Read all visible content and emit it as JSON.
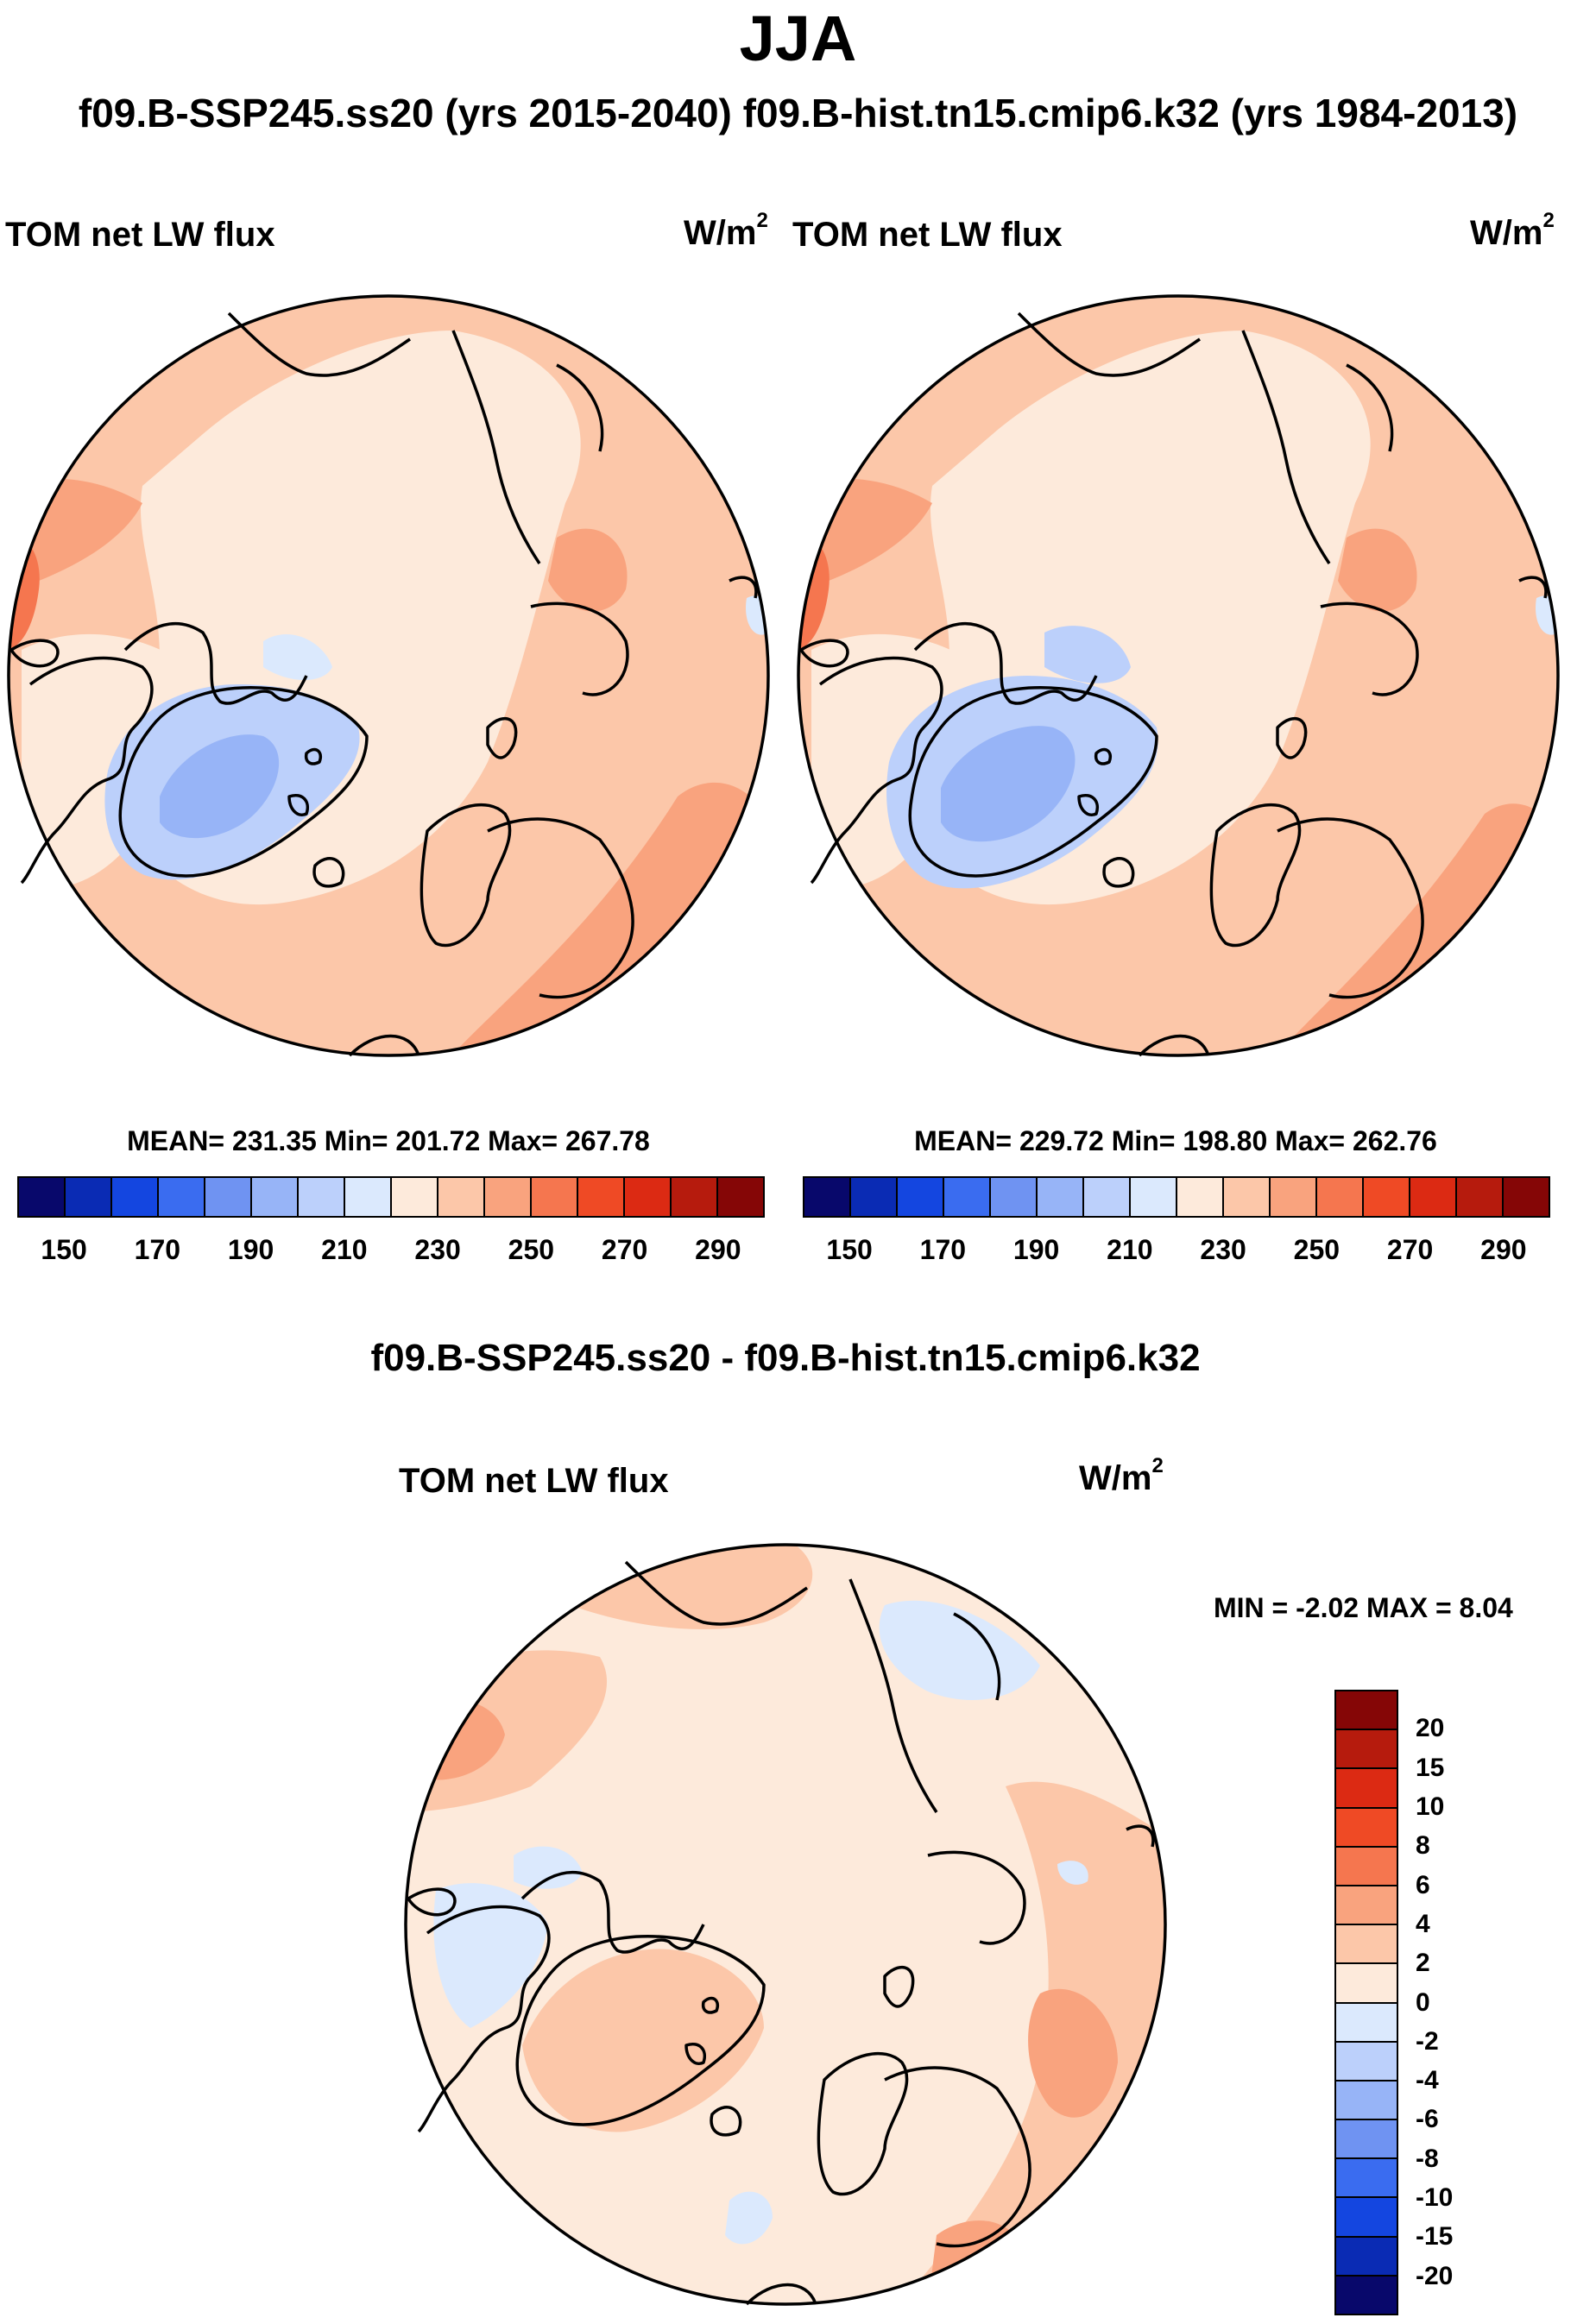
{
  "title": "JJA",
  "subtitle": "f09.B-SSP245.ss20 (yrs 2015-2040)  f09.B-hist.tn15.cmip6.k32 (yrs 1984-2013)",
  "units_base": "W/m",
  "units_exp": "2",
  "panels": [
    {
      "variable": "TOM net LW flux",
      "stats": "MEAN= 231.35  Min= 201.72  Max= 267.78"
    },
    {
      "variable": "TOM net LW flux",
      "stats": "MEAN= 229.72  Min= 198.80  Max= 262.76"
    }
  ],
  "abs_colorbar": {
    "colors": [
      "#08086b",
      "#0a2bb4",
      "#1446e0",
      "#3a6cf0",
      "#6f93f2",
      "#97b4f7",
      "#bcd0fb",
      "#dbe9fd",
      "#fdeadb",
      "#fcc7a9",
      "#f9a37e",
      "#f5764f",
      "#ef4a25",
      "#dc2a13",
      "#b61b0d",
      "#850606"
    ],
    "tick_labels": [
      "150",
      "170",
      "190",
      "210",
      "230",
      "250",
      "270",
      "290"
    ]
  },
  "diff_panel": {
    "heading": "f09.B-SSP245.ss20 - f09.B-hist.tn15.cmip6.k32",
    "variable": "TOM net LW flux",
    "stats": "MIN =  -2.02 MAX =   8.04"
  },
  "diff_colorbar": {
    "colors": [
      "#850606",
      "#b61b0d",
      "#dc2a13",
      "#ef4a25",
      "#f5764f",
      "#f9a37e",
      "#fcc7a9",
      "#fdeadb",
      "#dbe9fd",
      "#bcd0fb",
      "#97b4f7",
      "#6f93f2",
      "#3a6cf0",
      "#1446e0",
      "#0a2bb4",
      "#08086b"
    ],
    "tick_labels": [
      "20",
      "15",
      "10",
      "8",
      "6",
      "4",
      "2",
      "0",
      "-2",
      "-4",
      "-6",
      "-8",
      "-10",
      "-15",
      "-20"
    ]
  },
  "colors": {
    "cream": "#fdeadb",
    "light_salmon": "#fcc7a9",
    "salmon": "#f9a37e",
    "orange_red": "#f5764f",
    "pale_blue": "#dbe9fd",
    "light_blue": "#bcd0fb",
    "mid_blue": "#97b4f7"
  }
}
